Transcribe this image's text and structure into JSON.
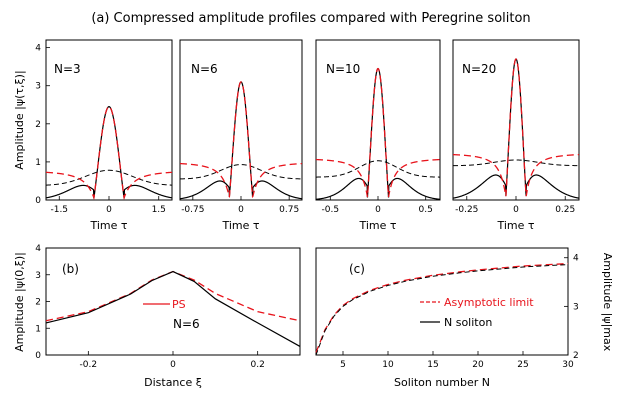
{
  "figure_title": "(a) Compressed amplitude profiles compared with Peregrine soliton",
  "colors": {
    "black": "#000000",
    "red": "#e8141c"
  },
  "chart_data": [
    {
      "id": "a1",
      "type": "line",
      "panel_label": "N=3",
      "xlabel": "Time τ",
      "ylabel": "Amplitude |ψ(τ,ξ)|",
      "xlim": [
        -1.9,
        1.9
      ],
      "ylim": [
        0,
        4.2
      ],
      "xticks": [
        -1.5,
        0,
        1.5
      ],
      "xtick_labels": [
        "-1.5",
        "0",
        "1.5"
      ],
      "yticks": [
        0,
        1,
        2,
        3,
        4
      ],
      "ytick_labels": [
        "0",
        "1",
        "2",
        "3",
        "4"
      ],
      "params": {
        "A": 2.45,
        "k": 3.4,
        "hump_h": 0.78,
        "hump_w": 0.9,
        "ps_bg": 0.78,
        "ns_bg": 0.38,
        "ns_w": 0.25
      },
      "series": [
        {
          "style": "solid-black"
        },
        {
          "style": "dashed-red"
        },
        {
          "style": "dashed-black"
        }
      ]
    },
    {
      "id": "a2",
      "type": "line",
      "panel_label": "N=6",
      "xlabel": "Time τ",
      "xlim": [
        -0.95,
        0.95
      ],
      "ylim": [
        0,
        4.2
      ],
      "xticks": [
        -0.75,
        0,
        0.75
      ],
      "xtick_labels": [
        "-0.75",
        "0",
        "0.75"
      ],
      "params": {
        "A": 3.1,
        "k": 8.5,
        "hump_h": 0.93,
        "hump_w": 0.4,
        "ps_bg": 1.0,
        "ns_bg": 0.55,
        "ns_w": 0.12
      },
      "series": [
        {
          "style": "solid-black"
        },
        {
          "style": "dashed-red"
        },
        {
          "style": "dashed-black"
        }
      ]
    },
    {
      "id": "a3",
      "type": "line",
      "panel_label": "N=10",
      "xlabel": "Time τ",
      "xlim": [
        -0.65,
        0.65
      ],
      "ylim": [
        0,
        4.2
      ],
      "xticks": [
        -0.5,
        0,
        0.5
      ],
      "xtick_labels": [
        "-0.5",
        "0",
        "0.5"
      ],
      "params": {
        "A": 3.45,
        "k": 14.0,
        "hump_h": 1.03,
        "hump_w": 0.25,
        "ps_bg": 1.1,
        "ns_bg": 0.6,
        "ns_w": 0.08
      },
      "series": [
        {
          "style": "solid-black"
        },
        {
          "style": "dashed-red"
        },
        {
          "style": "dashed-black"
        }
      ]
    },
    {
      "id": "a4",
      "type": "line",
      "panel_label": "N=20",
      "xlabel": "Time τ",
      "xlim": [
        -0.32,
        0.32
      ],
      "ylim": [
        0,
        4.2
      ],
      "xticks": [
        -0.25,
        0,
        0.25
      ],
      "xtick_labels": [
        "-0.25",
        "0",
        "0.25"
      ],
      "params": {
        "A": 3.7,
        "k": 30.0,
        "hump_h": 1.05,
        "hump_w": 0.14,
        "ps_bg": 1.23,
        "ns_bg": 0.9,
        "ns_w": 0.05
      },
      "series": [
        {
          "style": "solid-black"
        },
        {
          "style": "dashed-red"
        },
        {
          "style": "dashed-black"
        }
      ]
    },
    {
      "id": "b",
      "type": "line",
      "panel_label": "(b)",
      "xlabel": "Distance ξ",
      "ylabel": "Amplitude |ψ(0,ξ)|",
      "xlim": [
        -0.3,
        0.3
      ],
      "ylim": [
        0,
        4
      ],
      "xticks": [
        -0.2,
        0,
        0.2
      ],
      "xtick_labels": [
        "-0.2",
        "0",
        "0.2"
      ],
      "yticks": [
        0,
        1,
        2,
        3,
        4
      ],
      "ytick_labels": [
        "0",
        "1",
        "2",
        "3",
        "4"
      ],
      "legend": [
        "PS",
        "N=6"
      ],
      "series": [
        {
          "name": "PS",
          "style": "dashed-red",
          "x": [
            -0.3,
            -0.2,
            -0.1,
            -0.05,
            0,
            0.05,
            0.1,
            0.2,
            0.3
          ],
          "y": [
            1.28,
            1.62,
            2.3,
            2.8,
            3.12,
            2.8,
            2.3,
            1.62,
            1.28
          ]
        },
        {
          "name": "N=6",
          "style": "solid-black",
          "x": [
            -0.3,
            -0.2,
            -0.1,
            -0.05,
            0,
            0.05,
            0.1,
            0.2,
            0.3
          ],
          "y": [
            1.2,
            1.58,
            2.28,
            2.78,
            3.12,
            2.75,
            2.1,
            1.2,
            0.32
          ]
        }
      ]
    },
    {
      "id": "c",
      "type": "line",
      "panel_label": "(c)",
      "xlabel": "Soliton number N",
      "ylabel": "Amplitude |ψ|max",
      "xlim": [
        2,
        30
      ],
      "ylim": [
        2,
        4.2
      ],
      "xticks": [
        5,
        10,
        15,
        20,
        25,
        30
      ],
      "xtick_labels": [
        "5",
        "10",
        "15",
        "20",
        "25",
        "30"
      ],
      "yticks": [
        2,
        3,
        4
      ],
      "ytick_labels": [
        "2",
        "3",
        "4"
      ],
      "legend": [
        "Asymptotic limit",
        "N soliton"
      ],
      "series": [
        {
          "name": "Asymptotic limit",
          "style": "dashed-red",
          "x": [
            2,
            3,
            4,
            5,
            6,
            8,
            10,
            12,
            15,
            18,
            20,
            25,
            30
          ],
          "y": [
            2.05,
            2.52,
            2.82,
            3.02,
            3.15,
            3.33,
            3.45,
            3.54,
            3.64,
            3.71,
            3.75,
            3.83,
            3.88
          ]
        },
        {
          "name": "N soliton",
          "style": "dashed-black",
          "x": [
            2,
            3,
            4,
            5,
            6,
            8,
            10,
            12,
            15,
            18,
            20,
            25,
            30
          ],
          "y": [
            2.0,
            2.5,
            2.8,
            3.0,
            3.13,
            3.31,
            3.43,
            3.52,
            3.62,
            3.69,
            3.73,
            3.81,
            3.86
          ]
        }
      ]
    }
  ]
}
